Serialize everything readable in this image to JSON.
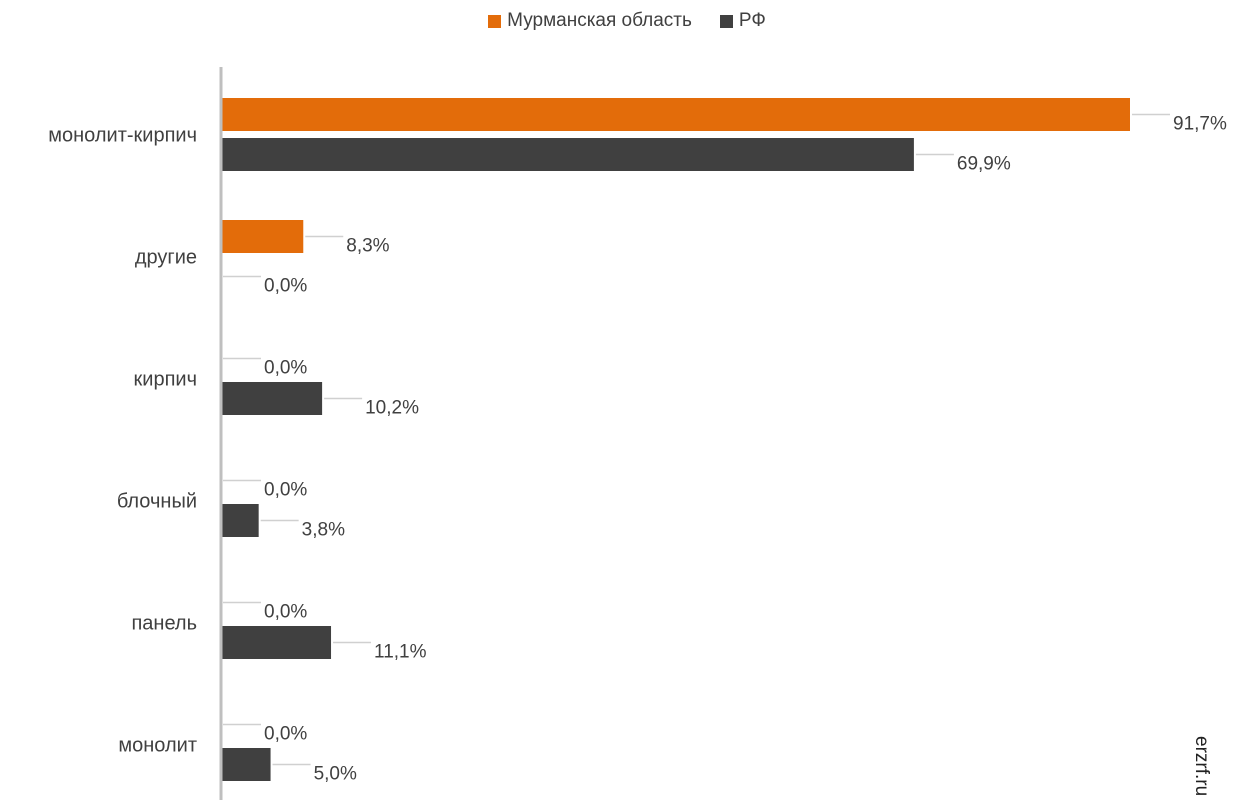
{
  "chart_data": {
    "type": "bar",
    "orientation": "horizontal",
    "categories": [
      "монолит-кирпич",
      "другие",
      "кирпич",
      "блочный",
      "панель",
      "монолит"
    ],
    "series": [
      {
        "name": "Мурманская область",
        "color": "#E36C0A",
        "values": [
          91.7,
          8.3,
          0.0,
          0.0,
          0.0,
          0.0
        ]
      },
      {
        "name": "РФ",
        "color": "#404040",
        "values": [
          69.9,
          0.0,
          10.2,
          3.8,
          11.1,
          5.0
        ]
      }
    ],
    "data_labels": [
      [
        "91,7%",
        "8,3%",
        "0,0%",
        "0,0%",
        "0,0%",
        "0,0%"
      ],
      [
        "69,9%",
        "0,0%",
        "10,2%",
        "3,8%",
        "11,1%",
        "5,0%"
      ]
    ],
    "xlim": [
      0,
      100
    ],
    "legend_position": "top-center",
    "grid": false,
    "title": "",
    "xlabel": "",
    "ylabel": ""
  },
  "watermark": "erzrf.ru"
}
